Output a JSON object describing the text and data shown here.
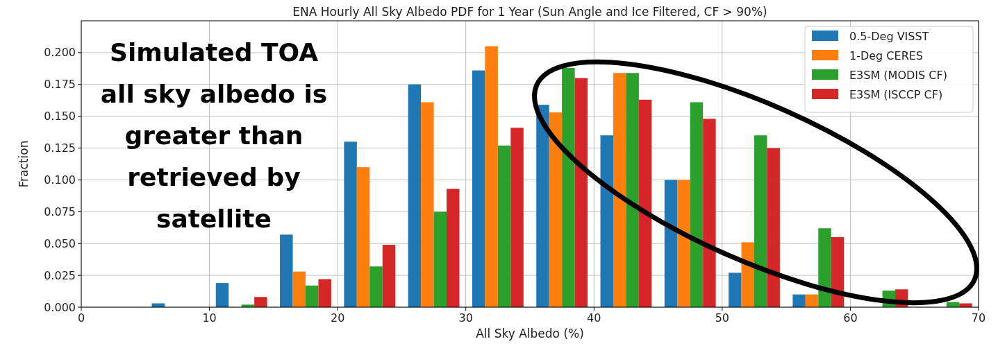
{
  "chart_data": {
    "type": "bar",
    "title": "ENA Hourly All Sky Albedo PDF for 1 Year (Sun Angle and Ice Filtered, CF > 90%)",
    "xlabel": "All Sky Albedo (%)",
    "ylabel": "Fraction",
    "x": [
      7.5,
      12.5,
      17.5,
      22.5,
      27.5,
      32.5,
      37.5,
      42.5,
      47.5,
      52.5,
      57.5,
      62.5,
      67.5
    ],
    "series": [
      {
        "name": "0.5-Deg VISST",
        "color": "#1f77b4",
        "values": [
          0.003,
          0.019,
          0.057,
          0.13,
          0.175,
          0.186,
          0.159,
          0.135,
          0.1,
          0.027,
          0.01,
          0,
          0
        ]
      },
      {
        "name": "1-Deg CERES",
        "color": "#ff7f0e",
        "values": [
          0,
          0,
          0.028,
          0.11,
          0.161,
          0.205,
          0.153,
          0.184,
          0.1,
          0.051,
          0.01,
          0,
          0
        ]
      },
      {
        "name": "E3SM (MODIS CF)",
        "color": "#2ca02c",
        "values": [
          0,
          0.002,
          0.017,
          0.032,
          0.075,
          0.127,
          0.188,
          0.184,
          0.161,
          0.135,
          0.062,
          0.013,
          0.004
        ]
      },
      {
        "name": "E3SM (ISCCP CF)",
        "color": "#d62728",
        "values": [
          0,
          0.008,
          0.022,
          0.049,
          0.093,
          0.141,
          0.18,
          0.163,
          0.148,
          0.125,
          0.055,
          0.014,
          0.003
        ]
      }
    ],
    "xlim": [
      0,
      70
    ],
    "xticks": [
      0,
      10,
      20,
      30,
      40,
      50,
      60,
      70
    ],
    "ylim": [
      0,
      0.225
    ],
    "yticks": [
      {
        "value": 0,
        "label": "0.000"
      },
      {
        "value": 0.025,
        "label": "0.025"
      },
      {
        "value": 0.05,
        "label": "0.050"
      },
      {
        "value": 0.075,
        "label": "0.075"
      },
      {
        "value": 0.1,
        "label": "0.100"
      },
      {
        "value": 0.125,
        "label": "0.125"
      },
      {
        "value": 0.15,
        "label": "0.150"
      },
      {
        "value": 0.175,
        "label": "0.175"
      },
      {
        "value": 0.2,
        "label": "0.200"
      }
    ],
    "grid": true,
    "legend": "top right",
    "annotations": [
      "Simulated TOA\nall sky albedo is\ngreater than\nretrieved by\nsatellite"
    ]
  }
}
